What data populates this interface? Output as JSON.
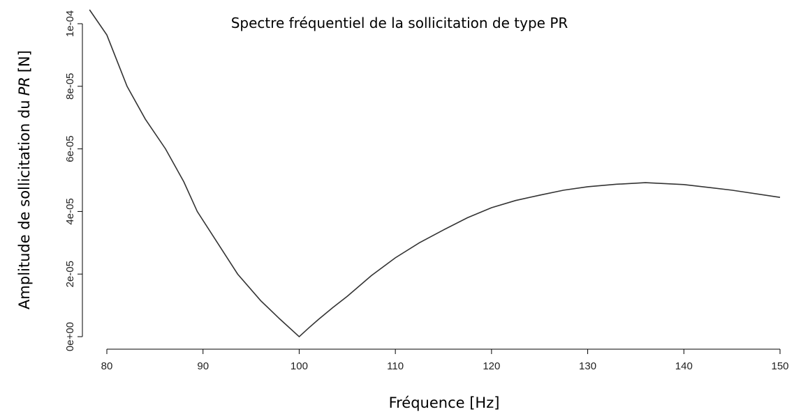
{
  "chart_data": {
    "type": "line",
    "title": "Spectre fréquentiel de la sollicitation de type PR",
    "xlabel": "Fréquence [Hz]",
    "ylabel": [
      "Amplitude de sollicitation du",
      "PR",
      "[N]"
    ],
    "x": [
      78.2,
      80,
      82.1,
      84,
      86.1,
      88,
      89.4,
      91.5,
      93.6,
      96,
      98,
      100,
      101,
      102,
      103.5,
      105,
      107.5,
      110,
      112.5,
      115,
      117.5,
      120,
      122.5,
      125,
      127.5,
      130,
      133,
      136,
      140,
      145,
      150
    ],
    "series": [
      {
        "name": "PR",
        "color": "#333333",
        "values": [
          0.00010445,
          9.64e-05,
          8e-05,
          6.95e-05,
          6e-05,
          4.95e-05,
          4e-05,
          3e-05,
          2e-05,
          1.15e-05,
          5.6e-06,
          0,
          2.8e-06,
          5.5e-06,
          9.3e-06,
          1.29e-05,
          1.95e-05,
          2.52e-05,
          3e-05,
          3.41e-05,
          3.8e-05,
          4.12e-05,
          4.35e-05,
          4.52e-05,
          4.68e-05,
          4.79e-05,
          4.87e-05,
          4.92e-05,
          4.86e-05,
          4.68e-05,
          4.45e-05
        ]
      }
    ],
    "xlim": [
      77.4,
      150
    ],
    "ylim": [
      -4e-06,
      0.00010757
    ],
    "xticks": [
      80,
      90,
      100,
      110,
      120,
      130,
      140,
      150
    ],
    "yticks": [
      {
        "value": 0,
        "label": "0e+00"
      },
      {
        "value": 2e-05,
        "label": "2e-05"
      },
      {
        "value": 4e-05,
        "label": "4e-05"
      },
      {
        "value": 6e-05,
        "label": "6e-05"
      },
      {
        "value": 8e-05,
        "label": "8e-05"
      },
      {
        "value": 0.0001,
        "label": "1e-04"
      }
    ]
  }
}
